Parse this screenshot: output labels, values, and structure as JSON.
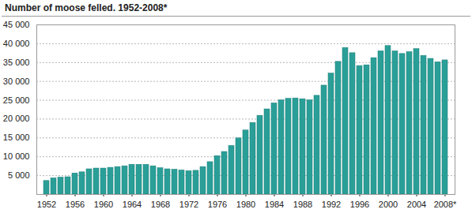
{
  "chart_data": {
    "type": "bar",
    "title": "Number of moose felled. 1952-2008*",
    "categories": [
      "1952",
      null,
      null,
      null,
      "1956",
      null,
      null,
      null,
      "1960",
      null,
      null,
      null,
      "1964",
      null,
      null,
      null,
      "1968",
      null,
      null,
      null,
      "1972",
      null,
      null,
      null,
      "1976",
      null,
      null,
      null,
      "1980",
      null,
      null,
      null,
      "1984",
      null,
      null,
      null,
      "1988",
      null,
      null,
      null,
      "1992",
      null,
      null,
      null,
      "1996",
      null,
      null,
      null,
      "2000",
      null,
      null,
      null,
      "2004",
      null,
      null,
      null,
      "2008*"
    ],
    "values": [
      3600,
      4300,
      4500,
      4600,
      5600,
      5900,
      6700,
      6900,
      6900,
      7100,
      7300,
      7500,
      7900,
      7900,
      7900,
      7500,
      7000,
      6700,
      6600,
      6400,
      6200,
      6300,
      7300,
      8600,
      10200,
      11300,
      12900,
      14900,
      17000,
      19000,
      20900,
      22600,
      24200,
      25000,
      25400,
      25500,
      25300,
      25000,
      26200,
      28900,
      32100,
      35200,
      38900,
      37500,
      34100,
      34300,
      36200,
      38000,
      39400,
      38000,
      37300,
      37800,
      38600,
      36800,
      36000,
      35100,
      35600
    ],
    "color": "#2a9f98",
    "ylim": [
      0,
      45000
    ],
    "yticks": [
      {
        "value": 5000,
        "label": "5 000"
      },
      {
        "value": 10000,
        "label": "10 000"
      },
      {
        "value": 15000,
        "label": "15 000"
      },
      {
        "value": 20000,
        "label": "20 000"
      },
      {
        "value": 25000,
        "label": "25 000"
      },
      {
        "value": 30000,
        "label": "30 000"
      },
      {
        "value": 35000,
        "label": "35 000"
      },
      {
        "value": 40000,
        "label": "40 000"
      },
      {
        "value": 45000,
        "label": "45 000"
      }
    ],
    "grid": true
  }
}
